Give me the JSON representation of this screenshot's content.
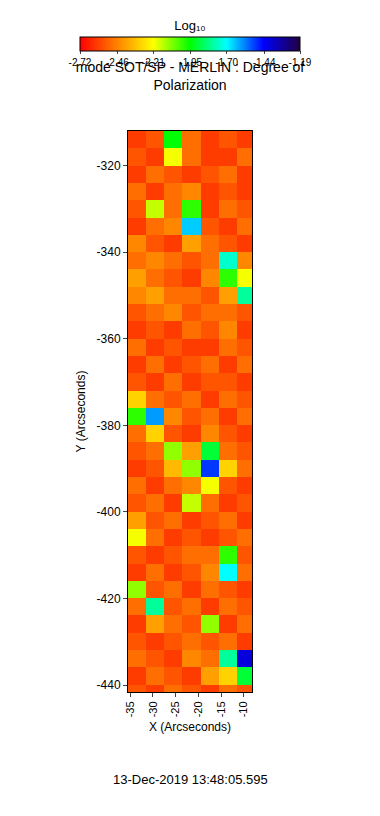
{
  "chart_data": {
    "type": "heatmap",
    "title": "mode SOT/SP - MERLIN : Degree of Polarization",
    "x_label": "X (Arcseconds)",
    "y_label": "Y (Arcseconds)",
    "annotations": [
      "13-Dec-2019 13:48:05.595"
    ],
    "x": [
      -33.5,
      -29.5,
      -25.5,
      -21.5,
      -17.5,
      -13.5,
      -9.5
    ],
    "y": [
      -314,
      -318,
      -322,
      -326,
      -330,
      -334,
      -338,
      -342,
      -346,
      -350,
      -354,
      -358,
      -362,
      -366,
      -370,
      -374,
      -378,
      -382,
      -386,
      -390,
      -394,
      -398,
      -402,
      -406,
      -410,
      -414,
      -418,
      -422,
      -426,
      -430,
      -434,
      -438,
      -442
    ],
    "cells": [
      [
        -2.6,
        -2.55,
        -1.95,
        -2.5,
        -2.6,
        -2.55,
        -2.6
      ],
      [
        -2.55,
        -2.6,
        -2.2,
        -2.5,
        -2.6,
        -2.6,
        -2.5
      ],
      [
        -2.6,
        -2.5,
        -2.55,
        -2.6,
        -2.55,
        -2.5,
        -2.6
      ],
      [
        -2.5,
        -2.6,
        -2.5,
        -2.45,
        -2.6,
        -2.55,
        -2.6
      ],
      [
        -2.55,
        -2.15,
        -2.5,
        -2.0,
        -2.6,
        -2.5,
        -2.55
      ],
      [
        -2.6,
        -2.5,
        -2.45,
        -1.65,
        -2.55,
        -2.6,
        -2.5
      ],
      [
        -2.45,
        -2.55,
        -2.6,
        -2.4,
        -2.5,
        -2.55,
        -2.6
      ],
      [
        -2.5,
        -2.45,
        -2.5,
        -2.55,
        -2.5,
        -1.75,
        -2.45
      ],
      [
        -2.4,
        -2.5,
        -2.55,
        -2.6,
        -2.45,
        -2.0,
        -2.2
      ],
      [
        -2.45,
        -2.4,
        -2.5,
        -2.5,
        -2.55,
        -2.4,
        -1.8
      ],
      [
        -2.55,
        -2.5,
        -2.45,
        -2.55,
        -2.5,
        -2.5,
        -2.55
      ],
      [
        -2.6,
        -2.55,
        -2.6,
        -2.5,
        -2.55,
        -2.45,
        -2.6
      ],
      [
        -2.5,
        -2.6,
        -2.55,
        -2.6,
        -2.6,
        -2.5,
        -2.55
      ],
      [
        -2.6,
        -2.5,
        -2.6,
        -2.55,
        -2.5,
        -2.6,
        -2.5
      ],
      [
        -2.55,
        -2.6,
        -2.5,
        -2.6,
        -2.55,
        -2.55,
        -2.6
      ],
      [
        -2.3,
        -2.5,
        -2.55,
        -2.5,
        -2.6,
        -2.5,
        -2.55
      ],
      [
        -2.0,
        -1.6,
        -2.45,
        -2.55,
        -2.5,
        -2.6,
        -2.5
      ],
      [
        -2.5,
        -2.3,
        -2.55,
        -2.6,
        -2.45,
        -2.55,
        -2.6
      ],
      [
        -2.55,
        -2.5,
        -2.1,
        -2.4,
        -1.9,
        -2.5,
        -2.55
      ],
      [
        -2.6,
        -2.55,
        -2.35,
        -2.1,
        -1.5,
        -2.3,
        -2.5
      ],
      [
        -2.5,
        -2.6,
        -2.5,
        -2.45,
        -2.2,
        -2.55,
        -2.6
      ],
      [
        -2.55,
        -2.5,
        -2.6,
        -2.15,
        -2.5,
        -2.6,
        -2.55
      ],
      [
        -2.4,
        -2.55,
        -2.5,
        -2.6,
        -2.55,
        -2.5,
        -2.6
      ],
      [
        -2.2,
        -2.5,
        -2.6,
        -2.55,
        -2.6,
        -2.55,
        -2.5
      ],
      [
        -2.55,
        -2.6,
        -2.55,
        -2.5,
        -2.5,
        -2.0,
        -2.55
      ],
      [
        -2.6,
        -2.5,
        -2.6,
        -2.55,
        -2.45,
        -1.7,
        -2.5
      ],
      [
        -2.1,
        -2.55,
        -2.5,
        -2.6,
        -2.5,
        -2.55,
        -2.6
      ],
      [
        -2.5,
        -1.8,
        -2.55,
        -2.5,
        -2.6,
        -2.5,
        -2.55
      ],
      [
        -2.6,
        -2.4,
        -2.5,
        -2.55,
        -2.1,
        -2.6,
        -2.5
      ],
      [
        -2.55,
        -2.6,
        -2.55,
        -2.5,
        -2.55,
        -2.5,
        -2.6
      ],
      [
        -2.5,
        -2.55,
        -2.6,
        -2.45,
        -2.5,
        -1.8,
        -1.4
      ],
      [
        -2.6,
        -2.5,
        -2.55,
        -2.6,
        -2.4,
        -2.3,
        -1.9
      ],
      [
        -2.55,
        -2.6,
        -2.5,
        -2.55,
        -2.6,
        -2.5,
        -2.55
      ]
    ],
    "xlim": [
      -35.5,
      -8.2
    ],
    "ylim": [
      -441.6,
      -312
    ],
    "xticks": [
      -35,
      -30,
      -25,
      -20,
      -15,
      -10
    ],
    "yticks": [
      -440,
      -420,
      -400,
      -380,
      -360,
      -340,
      -320
    ],
    "colors": [
      "#ff0000",
      "#ff8000",
      "#ffff00",
      "#00ff00",
      "#00ffff",
      "#0000ff",
      "#200040"
    ],
    "colorbar": {
      "title": "Log₁₀",
      "range": [
        -2.72,
        -1.19
      ],
      "ticks": [
        -2.72,
        -2.46,
        -2.21,
        -1.95,
        {
          "value": -1.7,
          "label": "-1.70"
        },
        -1.44,
        -1.19
      ]
    },
    "grid": false
  }
}
